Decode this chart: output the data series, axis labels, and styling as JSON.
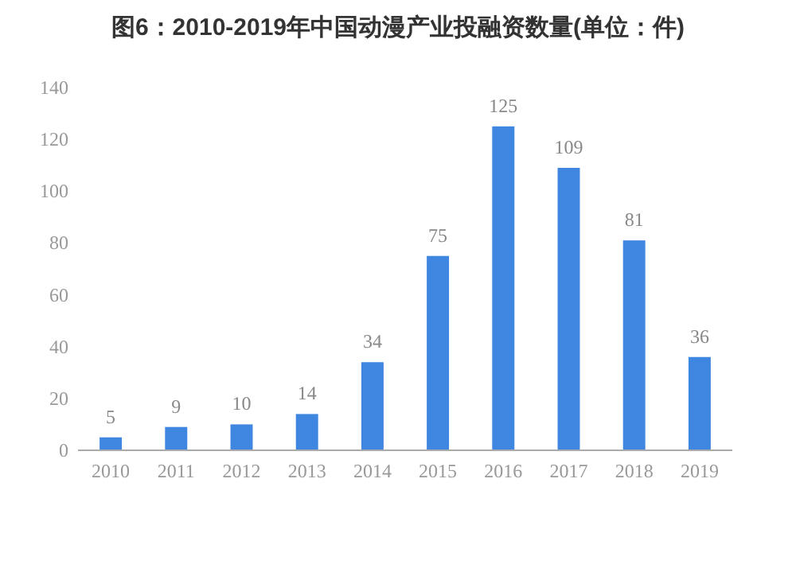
{
  "chart_data": {
    "type": "bar",
    "title": "图6：2010-2019年中国动漫产业投融资数量(单位：件)",
    "categories": [
      "2010",
      "2011",
      "2012",
      "2013",
      "2014",
      "2015",
      "2016",
      "2017",
      "2018",
      "2019"
    ],
    "values": [
      5,
      9,
      10,
      14,
      34,
      75,
      125,
      109,
      81,
      36
    ],
    "color": "#3f86e0",
    "ylim": [
      0,
      140
    ],
    "yticks": [
      0,
      20,
      40,
      60,
      80,
      100,
      120,
      140
    ],
    "data_labels": true
  }
}
